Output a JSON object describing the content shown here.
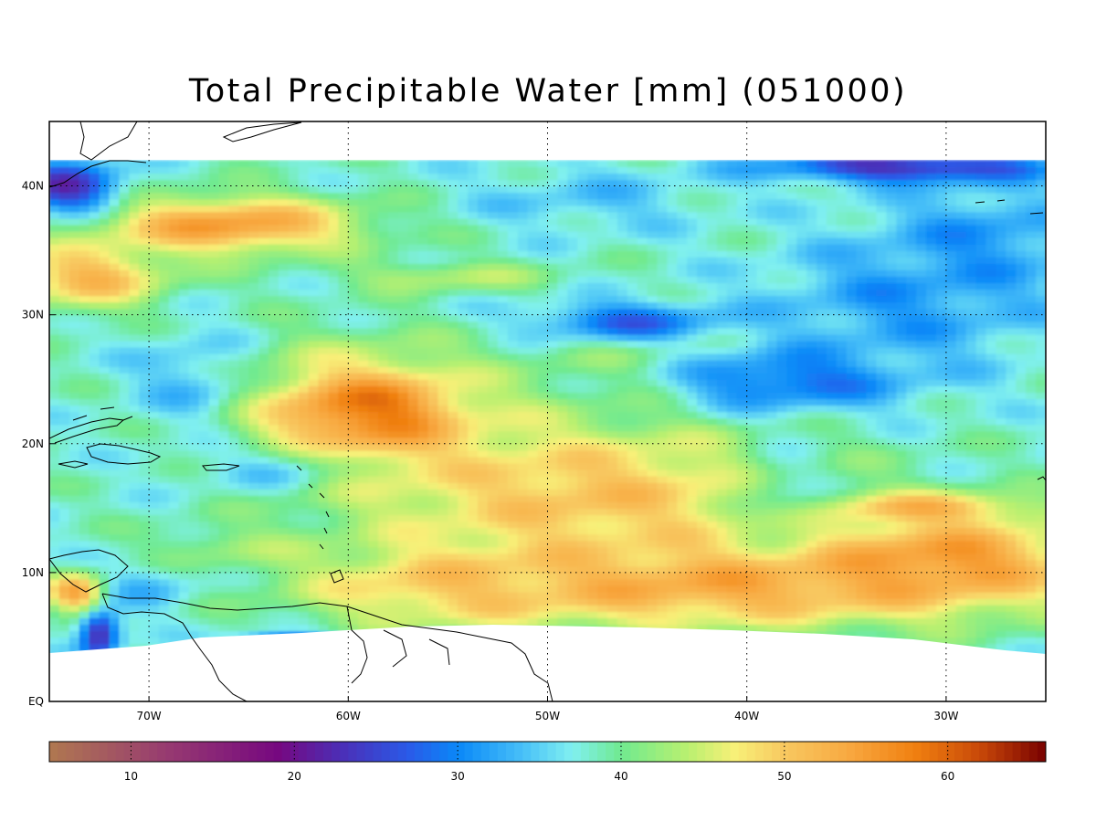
{
  "title": "Total Precipitable Water [mm]  (051000)",
  "map": {
    "lon_range": [
      -75,
      -25
    ],
    "lat_range": [
      0,
      45
    ],
    "data_lat_top": 42,
    "lon_ticks": [
      {
        "lon": -70,
        "label": "70W"
      },
      {
        "lon": -60,
        "label": "60W"
      },
      {
        "lon": -50,
        "label": "50W"
      },
      {
        "lon": -40,
        "label": "40W"
      },
      {
        "lon": -30,
        "label": "30W"
      }
    ],
    "lat_ticks": [
      {
        "lat": 40,
        "label": "40N"
      },
      {
        "lat": 30,
        "label": "30N"
      },
      {
        "lat": 20,
        "label": "20N"
      },
      {
        "lat": 10,
        "label": "10N"
      },
      {
        "lat": 0,
        "label": "EQ"
      }
    ],
    "grid": true,
    "grid_style": "dotted"
  },
  "colorbar": {
    "range": [
      5,
      66
    ],
    "ticks": [
      {
        "value": 10,
        "label": "10"
      },
      {
        "value": 20,
        "label": "20"
      },
      {
        "value": 30,
        "label": "30"
      },
      {
        "value": 40,
        "label": "40"
      },
      {
        "value": 50,
        "label": "50"
      },
      {
        "value": 60,
        "label": "60"
      }
    ],
    "stops": [
      {
        "v": 5,
        "c": "#b07850"
      },
      {
        "v": 12,
        "c": "#983c70"
      },
      {
        "v": 19,
        "c": "#760880"
      },
      {
        "v": 23,
        "c": "#4a30b8"
      },
      {
        "v": 27,
        "c": "#2a5ae8"
      },
      {
        "v": 30,
        "c": "#0a88f8"
      },
      {
        "v": 34,
        "c": "#48c0f8"
      },
      {
        "v": 37,
        "c": "#80f0f0"
      },
      {
        "v": 40,
        "c": "#70ea90"
      },
      {
        "v": 44,
        "c": "#b8f070"
      },
      {
        "v": 47,
        "c": "#f8f078"
      },
      {
        "v": 50,
        "c": "#f8c860"
      },
      {
        "v": 54,
        "c": "#f8a840"
      },
      {
        "v": 58,
        "c": "#f08010"
      },
      {
        "v": 62,
        "c": "#c84808"
      },
      {
        "v": 66,
        "c": "#780000"
      }
    ]
  },
  "field": {
    "base": 38,
    "features": [
      {
        "lon": -58.8,
        "lat": 22.4,
        "rx": 2.6,
        "ry": 1.8,
        "v": 66,
        "w": 1.0
      },
      {
        "lon": -59.2,
        "lat": 22.2,
        "rx": 6.0,
        "ry": 4.8,
        "v": 58,
        "w": 0.9
      },
      {
        "lon": -48,
        "lat": 16,
        "rx": 11,
        "ry": 6,
        "v": 53,
        "w": 0.85
      },
      {
        "lon": -42,
        "lat": 9,
        "rx": 14,
        "ry": 3.2,
        "v": 55,
        "w": 0.9
      },
      {
        "lon": -30,
        "lat": 11,
        "rx": 7,
        "ry": 3.5,
        "v": 58,
        "w": 0.85
      },
      {
        "lon": -31,
        "lat": 15,
        "rx": 5,
        "ry": 1.2,
        "v": 56,
        "w": 0.7
      },
      {
        "lon": -55,
        "lat": 9,
        "rx": 7,
        "ry": 3,
        "v": 52,
        "w": 0.75
      },
      {
        "lon": -66,
        "lat": 37,
        "rx": 6.5,
        "ry": 2.2,
        "v": 57,
        "w": 0.9
      },
      {
        "lon": -73,
        "lat": 33,
        "rx": 4,
        "ry": 2.5,
        "v": 55,
        "w": 0.8
      },
      {
        "lon": -45,
        "lat": 27,
        "rx": 6,
        "ry": 3,
        "v": 46,
        "w": 0.5
      },
      {
        "lon": -38,
        "lat": 25,
        "rx": 6,
        "ry": 2.5,
        "v": 26,
        "w": 0.85
      },
      {
        "lon": -46,
        "lat": 29.5,
        "rx": 5,
        "ry": 1.6,
        "v": 25,
        "w": 0.8
      },
      {
        "lon": -32,
        "lat": 31,
        "rx": 7,
        "ry": 5,
        "v": 30,
        "w": 0.8
      },
      {
        "lon": -28,
        "lat": 36,
        "rx": 5,
        "ry": 4,
        "v": 30,
        "w": 0.8
      },
      {
        "lon": -32,
        "lat": 41.5,
        "rx": 7,
        "ry": 1.2,
        "v": 21,
        "w": 0.9
      },
      {
        "lon": -48,
        "lat": 39,
        "rx": 6,
        "ry": 2.5,
        "v": 33,
        "w": 0.7
      },
      {
        "lon": -38,
        "lat": 17,
        "rx": 2.5,
        "ry": 4,
        "v": 36,
        "w": 0.7
      },
      {
        "lon": -74,
        "lat": 40,
        "rx": 2.5,
        "ry": 2,
        "v": 21,
        "w": 0.9
      },
      {
        "lon": -64,
        "lat": 18,
        "rx": 4.5,
        "ry": 2,
        "v": 33,
        "w": 0.7
      },
      {
        "lon": -68,
        "lat": 25,
        "rx": 3,
        "ry": 4,
        "v": 32,
        "w": 0.7
      },
      {
        "lon": -55,
        "lat": 33,
        "rx": 5,
        "ry": 1.2,
        "v": 48,
        "w": 0.6
      },
      {
        "lon": -63,
        "lat": 4.8,
        "rx": 2.5,
        "ry": 0.6,
        "v": 22,
        "w": 0.8
      },
      {
        "lon": -72.5,
        "lat": 5.5,
        "rx": 1.0,
        "ry": 2.2,
        "v": 19,
        "w": 0.9
      },
      {
        "lon": -73.5,
        "lat": 8.5,
        "rx": 1.5,
        "ry": 1.5,
        "v": 60,
        "w": 0.8
      },
      {
        "lon": -70,
        "lat": 9,
        "rx": 2.5,
        "ry": 2,
        "v": 32,
        "w": 0.7
      },
      {
        "lon": -66,
        "lat": 12,
        "rx": 4,
        "ry": 1.6,
        "v": 45,
        "w": 0.6
      }
    ]
  }
}
